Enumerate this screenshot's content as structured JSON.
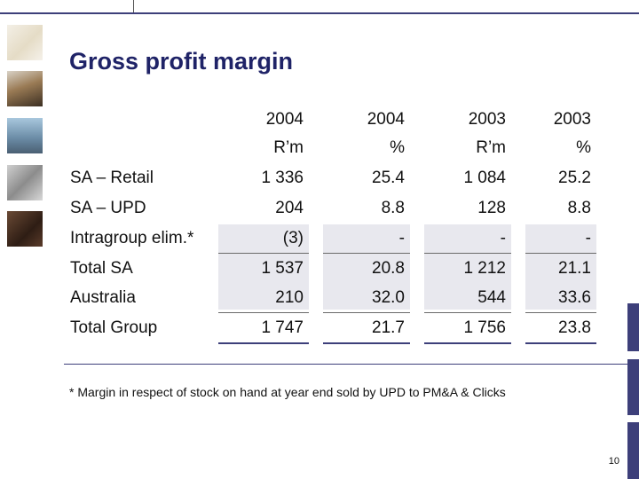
{
  "title": "Gross profit margin",
  "headers": [
    {
      "year": "2004",
      "unit": "R’m"
    },
    {
      "year": "2004",
      "unit": "%"
    },
    {
      "year": "2003",
      "unit": "R’m"
    },
    {
      "year": "2003",
      "unit": "%"
    }
  ],
  "rows": [
    {
      "label": "SA – Retail",
      "c1": "1 336",
      "c2": "25.4",
      "c3": "1 084",
      "c4": "25.2"
    },
    {
      "label": "SA – UPD",
      "c1": "204",
      "c2": "8.8",
      "c3": "128",
      "c4": "8.8"
    },
    {
      "label": "Intragroup elim.*",
      "c1": "(3)",
      "c2": "-",
      "c3": "-",
      "c4": "-"
    },
    {
      "label": "Total SA",
      "c1": "1 537",
      "c2": "20.8",
      "c3": "1 212",
      "c4": "21.1"
    },
    {
      "label": "Australia",
      "c1": "210",
      "c2": "32.0",
      "c3": "544",
      "c4": "33.6"
    },
    {
      "label": "Total Group",
      "c1": "1 747",
      "c2": "21.7",
      "c3": "1 756",
      "c4": "23.8"
    }
  ],
  "footnote": "* Margin in respect of stock on hand at year end sold by UPD to PM&A & Clicks",
  "page_number": "10"
}
